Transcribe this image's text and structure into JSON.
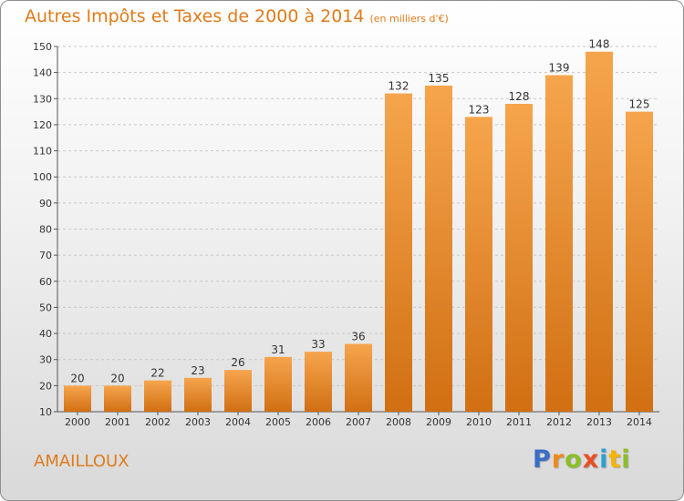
{
  "header": {
    "title": "Autres Impôts et Taxes de 2000 à 2014",
    "subtitle": "(en milliers d'€)"
  },
  "footer": {
    "commune": "AMAILLOUX",
    "logo_text": "Proxiti"
  },
  "colors": {
    "accent": "#e07b1a",
    "bar_top": "#f6a54d",
    "bar_bottom": "#d16f12",
    "logo": [
      "#3b6cc7",
      "#f08a1c",
      "#8cbf26",
      "#e94f22",
      "#2ea0d4",
      "#f4b400",
      "#8cbf26"
    ]
  },
  "chart_data": {
    "type": "bar",
    "title": "Autres Impôts et Taxes de 2000 à 2014",
    "subtitle": "(en milliers d'€)",
    "categories": [
      "2000",
      "2001",
      "2002",
      "2003",
      "2004",
      "2005",
      "2006",
      "2007",
      "2008",
      "2009",
      "2010",
      "2011",
      "2012",
      "2013",
      "2014"
    ],
    "values": [
      20,
      20,
      22,
      23,
      26,
      31,
      33,
      36,
      132,
      135,
      123,
      128,
      139,
      148,
      125
    ],
    "data_labels": [
      "20",
      "20",
      "22",
      "23",
      "26",
      "31",
      "33",
      "36",
      "132",
      "135",
      "123",
      "128",
      "139",
      "148",
      "125"
    ],
    "yticks": [
      "10",
      "20",
      "30",
      "40",
      "50",
      "60",
      "70",
      "80",
      "90",
      "100",
      "110",
      "120",
      "130",
      "140",
      "150"
    ],
    "ylim": [
      10,
      150
    ],
    "xlabel": "",
    "ylabel": "",
    "grid": true,
    "legend": "none"
  }
}
